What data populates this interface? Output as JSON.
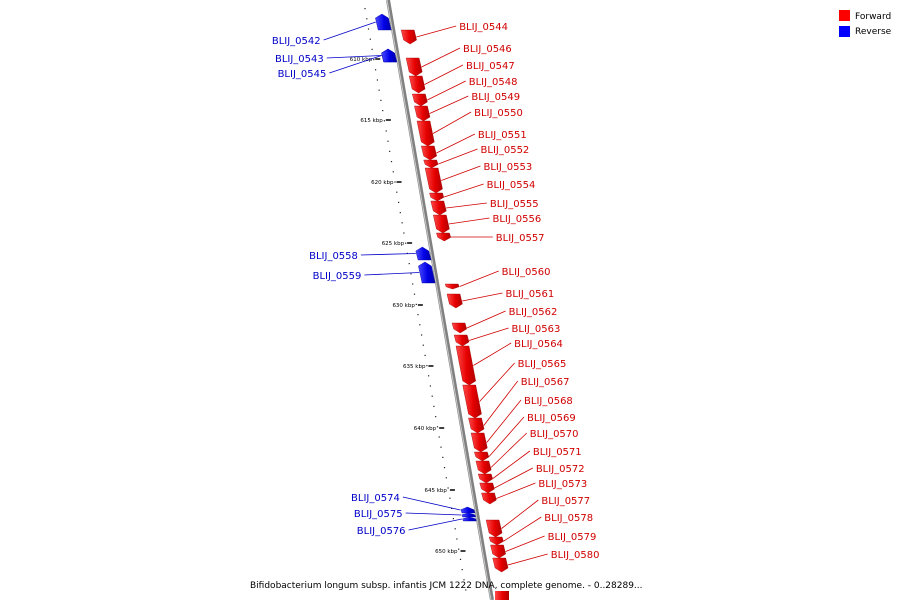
{
  "legend": {
    "forward_label": "Forward",
    "reverse_label": "Reverse",
    "forward_color": "#ff0000",
    "reverse_color": "#0000ff"
  },
  "caption": "Bifidobacterium longum subsp. infantis JCM 1222 DNA, complete genome. - 0..28289...",
  "axis": {
    "tick_labels": [
      "610 kbp",
      "615 kbp",
      "620 kbp",
      "625 kbp",
      "630 kbp",
      "635 kbp",
      "640 kbp",
      "645 kbp",
      "650 kbp"
    ]
  },
  "genes": [
    {
      "id": "BLIJ_0542",
      "strand": "reverse"
    },
    {
      "id": "BLIJ_0543",
      "strand": "reverse"
    },
    {
      "id": "BLIJ_0544",
      "strand": "forward"
    },
    {
      "id": "BLIJ_0545",
      "strand": "reverse"
    },
    {
      "id": "BLIJ_0546",
      "strand": "forward"
    },
    {
      "id": "BLIJ_0547",
      "strand": "forward"
    },
    {
      "id": "BLIJ_0548",
      "strand": "forward"
    },
    {
      "id": "BLIJ_0549",
      "strand": "forward"
    },
    {
      "id": "BLIJ_0550",
      "strand": "forward"
    },
    {
      "id": "BLIJ_0551",
      "strand": "forward"
    },
    {
      "id": "BLIJ_0552",
      "strand": "forward"
    },
    {
      "id": "BLIJ_0553",
      "strand": "forward"
    },
    {
      "id": "BLIJ_0554",
      "strand": "forward"
    },
    {
      "id": "BLIJ_0555",
      "strand": "forward"
    },
    {
      "id": "BLIJ_0556",
      "strand": "forward"
    },
    {
      "id": "BLIJ_0557",
      "strand": "forward"
    },
    {
      "id": "BLIJ_0558",
      "strand": "reverse"
    },
    {
      "id": "BLIJ_0559",
      "strand": "reverse"
    },
    {
      "id": "BLIJ_0560",
      "strand": "forward"
    },
    {
      "id": "BLIJ_0561",
      "strand": "forward"
    },
    {
      "id": "BLIJ_0562",
      "strand": "forward"
    },
    {
      "id": "BLIJ_0563",
      "strand": "forward"
    },
    {
      "id": "BLIJ_0564",
      "strand": "forward"
    },
    {
      "id": "BLIJ_0565",
      "strand": "forward"
    },
    {
      "id": "BLIJ_0567",
      "strand": "forward"
    },
    {
      "id": "BLIJ_0568",
      "strand": "forward"
    },
    {
      "id": "BLIJ_0569",
      "strand": "forward"
    },
    {
      "id": "BLIJ_0570",
      "strand": "forward"
    },
    {
      "id": "BLIJ_0571",
      "strand": "forward"
    },
    {
      "id": "BLIJ_0572",
      "strand": "forward"
    },
    {
      "id": "BLIJ_0573",
      "strand": "forward"
    },
    {
      "id": "BLIJ_0574",
      "strand": "reverse"
    },
    {
      "id": "BLIJ_0575",
      "strand": "reverse"
    },
    {
      "id": "BLIJ_0576",
      "strand": "reverse"
    },
    {
      "id": "BLIJ_0577",
      "strand": "forward"
    },
    {
      "id": "BLIJ_0578",
      "strand": "forward"
    },
    {
      "id": "BLIJ_0579",
      "strand": "forward"
    },
    {
      "id": "BLIJ_0580",
      "strand": "forward"
    }
  ]
}
